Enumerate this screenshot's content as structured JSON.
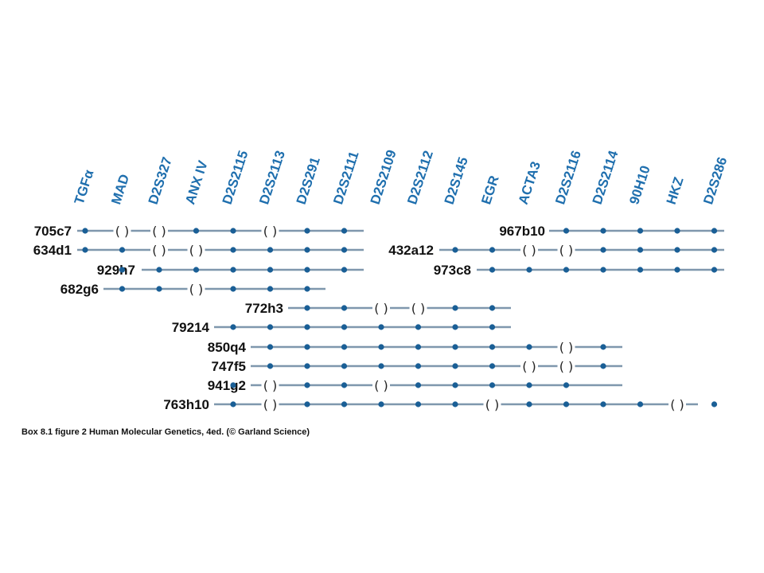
{
  "colors": {
    "marker_text": "#1f6fae",
    "line": "#7f97ad",
    "dot": "#1a5f96",
    "text": "#111111"
  },
  "markers": [
    "TGFα",
    "MAD",
    "D2S327",
    "ANX IV",
    "D2S2115",
    "D2S2113",
    "D2S291",
    "D2S2111",
    "D2S2109",
    "D2S2112",
    "D2S145",
    "EGR",
    "ACTA3",
    "D2S2116",
    "D2S2114",
    "90H10",
    "HKZ",
    "D2S286"
  ],
  "clones": [
    {
      "name": "705c7",
      "states": [
        "dot",
        "paren",
        "paren",
        "dot",
        "dot",
        "paren",
        "dot",
        "dot"
      ],
      "start": 0
    },
    {
      "name": "634d1",
      "states": [
        "dot",
        "dot",
        "paren",
        "paren",
        "dot",
        "dot",
        "dot",
        "dot"
      ],
      "start": 0
    },
    {
      "name": "929h7",
      "states": [
        "dot",
        "dot",
        "dot",
        "dot",
        "dot",
        "dot",
        "dot"
      ],
      "start": 1
    },
    {
      "name": "682g6",
      "states": [
        "dot",
        "dot",
        "paren",
        "dot",
        "dot",
        "dot"
      ],
      "start": 1
    },
    {
      "name": "772h3",
      "states": [
        "dot",
        "dot",
        "paren",
        "paren",
        "dot",
        "dot"
      ],
      "start": 6
    },
    {
      "name": "79214",
      "states": [
        "dot",
        "dot",
        "dot",
        "dot",
        "dot",
        "dot",
        "dot",
        "dot"
      ],
      "start": 4
    },
    {
      "name": "850q4",
      "states": [
        "dot",
        "dot",
        "dot",
        "dot",
        "dot",
        "dot",
        "dot",
        "dot",
        "paren",
        "dot"
      ],
      "start": 5
    },
    {
      "name": "747f5",
      "states": [
        "dot",
        "dot",
        "dot",
        "dot",
        "dot",
        "dot",
        "dot",
        "paren",
        "paren",
        "dot"
      ],
      "start": 5
    },
    {
      "name": "941g2",
      "states": [
        "dot",
        "paren",
        "dot",
        "dot",
        "paren",
        "dot",
        "dot",
        "dot",
        "dot",
        "dot"
      ],
      "start": 4
    },
    {
      "name": "763h10",
      "states": [
        "dot",
        "paren",
        "dot",
        "dot",
        "dot",
        "dot",
        "dot",
        "paren",
        "dot",
        "dot",
        "dot",
        "dot",
        "paren",
        "dot"
      ],
      "start": 4
    },
    {
      "name": "967b10",
      "states": [
        "dot",
        "dot",
        "dot",
        "dot",
        "dot"
      ],
      "start": 13
    },
    {
      "name": "432a12",
      "states": [
        "dot",
        "dot",
        "paren",
        "paren",
        "dot",
        "dot",
        "dot",
        "dot"
      ],
      "start": 10
    },
    {
      "name": "973c8",
      "states": [
        "dot",
        "dot",
        "dot",
        "dot",
        "dot",
        "dot",
        "dot"
      ],
      "start": 11
    }
  ],
  "caption": "Box 8.1 figure 2  Human Molecular Genetics, 4ed. (© Garland Science)"
}
